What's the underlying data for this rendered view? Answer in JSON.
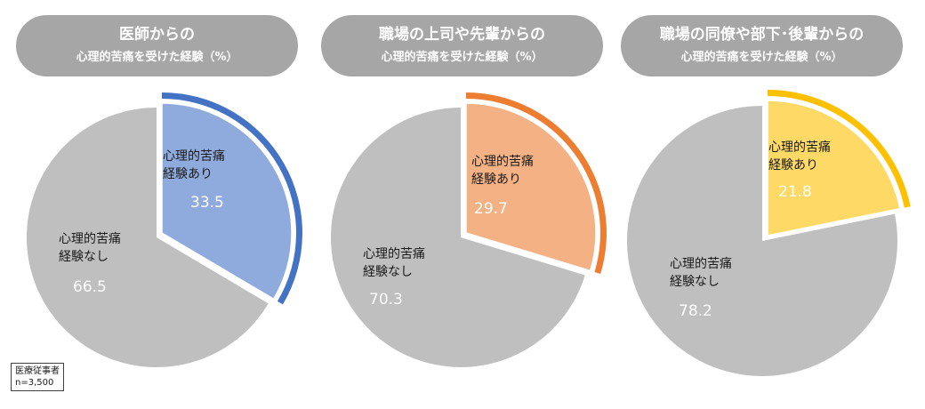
{
  "chart_data": [
    {
      "type": "pie",
      "title_line1": "医師からの",
      "title_line2": "心理的苦痛を受けた経験（%）",
      "slices": [
        {
          "label_line1": "心理的苦痛",
          "label_line2": "経験あり",
          "value": 33.5,
          "color": "#8faadc"
        },
        {
          "label_line1": "心理的苦痛",
          "label_line2": "経験なし",
          "value": 66.5,
          "color": "#bfbfbf"
        }
      ],
      "accent_color": "#4472c4"
    },
    {
      "type": "pie",
      "title_line1": "職場の上司や先輩からの",
      "title_line2": "心理的苦痛を受けた経験（%）",
      "slices": [
        {
          "label_line1": "心理的苦痛",
          "label_line2": "経験あり",
          "value": 29.7,
          "color": "#f4b183"
        },
        {
          "label_line1": "心理的苦痛",
          "label_line2": "経験なし",
          "value": 70.3,
          "color": "#bfbfbf"
        }
      ],
      "accent_color": "#ed7d31"
    },
    {
      "type": "pie",
      "title_line1": "職場の同僚や部下･後輩からの",
      "title_line2": "心理的苦痛を受けた経験（%）",
      "slices": [
        {
          "label_line1": "心理的苦痛",
          "label_line2": "経験あり",
          "value": 21.8,
          "color": "#ffd966"
        },
        {
          "label_line1": "心理的苦痛",
          "label_line2": "経験なし",
          "value": 78.2,
          "color": "#bfbfbf"
        }
      ],
      "accent_color": "#ffc000"
    }
  ],
  "note": {
    "line1": "医療従事者",
    "line2": "n=3,500"
  },
  "header_color": "#a6a6a6"
}
